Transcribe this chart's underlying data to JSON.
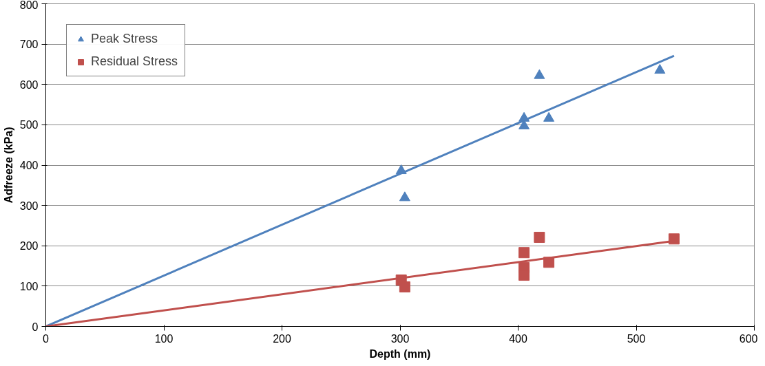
{
  "chart_data": {
    "type": "scatter",
    "xlabel": "Depth (mm)",
    "ylabel": "Adfreeze (kPa)",
    "xlim": [
      0,
      600
    ],
    "ylim": [
      0,
      800
    ],
    "xticks": [
      0,
      100,
      200,
      300,
      400,
      500,
      600
    ],
    "yticks": [
      0,
      100,
      200,
      300,
      400,
      500,
      600,
      700,
      800
    ],
    "grid": "y",
    "legend": "top left",
    "series": [
      {
        "name": "Peak Stress",
        "color": "#4f81bd",
        "marker": "triangle",
        "x": [
          301,
          304,
          405,
          405,
          418,
          426,
          520
        ],
        "values": [
          386,
          319,
          516,
          497,
          622,
          516,
          635
        ]
      },
      {
        "name": "Residual Stress",
        "color": "#c0504d",
        "marker": "square",
        "x": [
          301,
          304,
          405,
          405,
          405,
          418,
          426,
          532
        ],
        "values": [
          115,
          98,
          183,
          146,
          127,
          221,
          159,
          217
        ]
      },
      {
        "type": "line",
        "color": "#4f81bd",
        "x": [
          0,
          532
        ],
        "values": [
          0,
          671
        ]
      },
      {
        "type": "line",
        "color": "#c0504d",
        "x": [
          0,
          532
        ],
        "values": [
          0,
          212
        ]
      }
    ]
  }
}
